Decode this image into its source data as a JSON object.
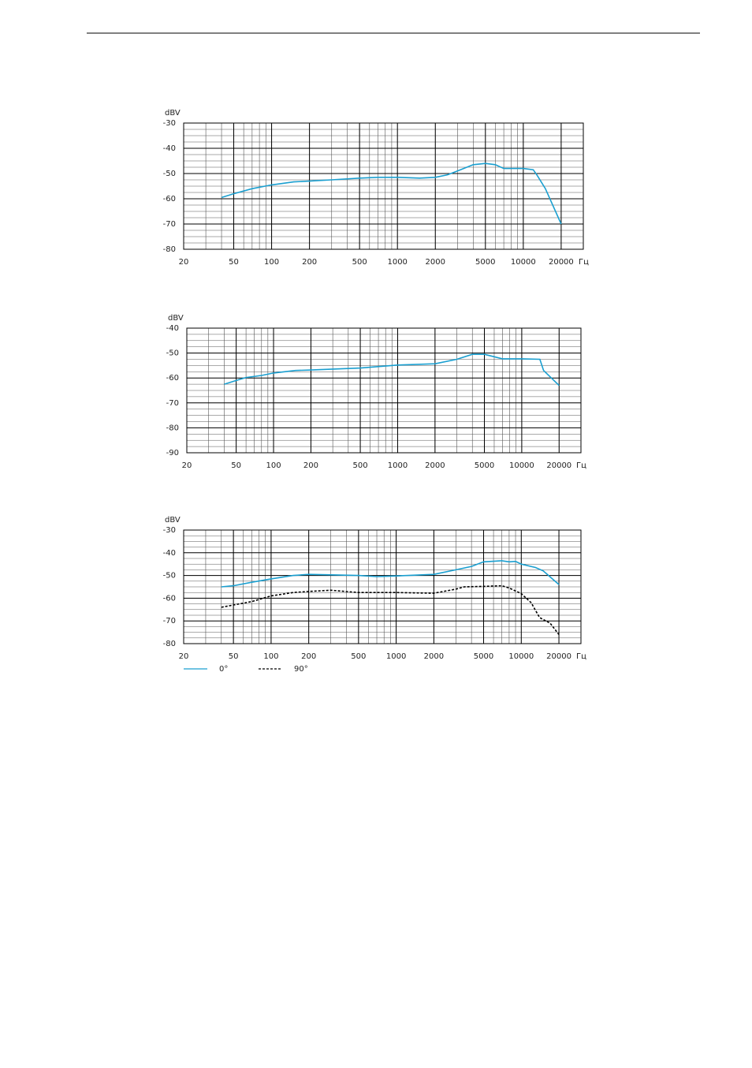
{
  "chart_data": [
    {
      "type": "line",
      "ylabel": "dBV",
      "xlabel": "Гц",
      "xscale": "log",
      "grid": true,
      "xlim": [
        20,
        30000
      ],
      "xticks": [
        20,
        50,
        100,
        200,
        500,
        1000,
        2000,
        5000,
        10000,
        20000
      ],
      "ylim": [
        -80,
        -30
      ],
      "yticks": [
        -30,
        -40,
        -50,
        -60,
        -70,
        -80
      ],
      "series": [
        {
          "color": "#1a9fd0",
          "line_style": "solid",
          "x": [
            40,
            50,
            70,
            100,
            150,
            200,
            300,
            500,
            700,
            1000,
            1500,
            2000,
            2500,
            3000,
            4000,
            5000,
            6000,
            7000,
            8000,
            10000,
            12000,
            13000,
            15000,
            20000
          ],
          "values": [
            -59.5,
            -58,
            -56,
            -54.5,
            -53.3,
            -53,
            -52.5,
            -51.8,
            -51.5,
            -51.5,
            -51.8,
            -51.5,
            -50.5,
            -49,
            -46.5,
            -46,
            -46.5,
            -48,
            -48,
            -48,
            -48.5,
            -51,
            -56,
            -70
          ]
        }
      ]
    },
    {
      "type": "line",
      "ylabel": "dBV",
      "xlabel": "Гц",
      "xscale": "log",
      "grid": true,
      "xlim": [
        20,
        30000
      ],
      "xticks": [
        20,
        50,
        100,
        200,
        500,
        1000,
        2000,
        5000,
        10000,
        20000
      ],
      "ylim": [
        -90,
        -40
      ],
      "yticks": [
        -40,
        -50,
        -60,
        -70,
        -80,
        -90
      ],
      "series": [
        {
          "color": "#1a9fd0",
          "line_style": "solid",
          "x": [
            40,
            50,
            60,
            80,
            100,
            150,
            200,
            500,
            1000,
            2000,
            3000,
            4000,
            5000,
            6000,
            7000,
            10000,
            14000,
            15000,
            20000
          ],
          "values": [
            -62.5,
            -61,
            -59.8,
            -59,
            -58,
            -57,
            -56.8,
            -56,
            -54.8,
            -54.3,
            -52.5,
            -50.5,
            -50.5,
            -51.5,
            -52.3,
            -52.3,
            -52.5,
            -57,
            -63
          ]
        }
      ]
    },
    {
      "type": "line",
      "ylabel": "dBV",
      "xlabel": "Гц",
      "xscale": "log",
      "grid": true,
      "xlim": [
        20,
        30000
      ],
      "xticks": [
        20,
        50,
        100,
        200,
        500,
        1000,
        2000,
        5000,
        10000,
        20000
      ],
      "ylim": [
        -80,
        -30
      ],
      "yticks": [
        -30,
        -40,
        -50,
        -60,
        -70,
        -80
      ],
      "series": [
        {
          "name": "0°",
          "color": "#1a9fd0",
          "line_style": "solid",
          "x": [
            40,
            50,
            70,
            100,
            150,
            200,
            500,
            700,
            1000,
            2000,
            3000,
            4000,
            5000,
            7000,
            8000,
            9000,
            10000,
            13000,
            15000,
            20000
          ],
          "values": [
            -55,
            -54.5,
            -53,
            -51.5,
            -50,
            -49.5,
            -50,
            -50.5,
            -50.2,
            -49.5,
            -47.5,
            -46,
            -44,
            -43.5,
            -44,
            -43.8,
            -45,
            -46.5,
            -48,
            -54
          ]
        },
        {
          "name": "90°",
          "color": "#000000",
          "line_style": "dashed",
          "x": [
            40,
            50,
            70,
            100,
            150,
            200,
            300,
            500,
            1000,
            2000,
            3000,
            3500,
            5000,
            7000,
            8000,
            10000,
            12000,
            14000,
            17000,
            20000
          ],
          "values": [
            -64,
            -63,
            -61.5,
            -59,
            -57.5,
            -57,
            -56.5,
            -57.5,
            -57.5,
            -57.8,
            -56,
            -55,
            -54.8,
            -54.5,
            -55.5,
            -58,
            -62,
            -68.5,
            -71,
            -76
          ]
        }
      ]
    }
  ]
}
